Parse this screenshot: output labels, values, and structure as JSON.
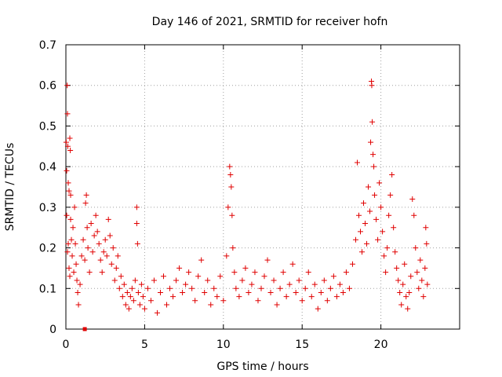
{
  "chart_data": {
    "type": "scatter",
    "title": "Day 146 of 2021, SRMTID for receiver hofn",
    "xlabel": "GPS time / hours",
    "ylabel": "SRMTID / TECUs",
    "xlim": [
      0,
      25
    ],
    "ylim": [
      0,
      0.7
    ],
    "xticks": [
      0,
      5,
      10,
      15,
      20
    ],
    "yticks": [
      0,
      0.1,
      0.2,
      0.3,
      0.4,
      0.5,
      0.6,
      0.7
    ],
    "xtick_labels": [
      "0",
      "5",
      "10",
      "15",
      "20"
    ],
    "ytick_labels": [
      "0",
      "0.1",
      "0.2",
      "0.3",
      "0.4",
      "0.5",
      "0.6",
      "0.7"
    ],
    "grid": true,
    "marker": "plus",
    "color": "#e00000",
    "series": [
      {
        "name": "SRMTID",
        "points": [
          [
            0.02,
            0.46
          ],
          [
            0.05,
            0.39
          ],
          [
            0.08,
            0.6
          ],
          [
            0.1,
            0.53
          ],
          [
            0.12,
            0.45
          ],
          [
            0.15,
            0.36
          ],
          [
            0.2,
            0.34
          ],
          [
            0.25,
            0.47
          ],
          [
            0.28,
            0.44
          ],
          [
            0.3,
            0.33
          ],
          [
            0.05,
            0.28
          ],
          [
            0.1,
            0.19
          ],
          [
            0.15,
            0.21
          ],
          [
            0.2,
            0.15
          ],
          [
            0.25,
            0.13
          ],
          [
            0.3,
            0.27
          ],
          [
            0.35,
            0.22
          ],
          [
            0.4,
            0.18
          ],
          [
            0.45,
            0.25
          ],
          [
            0.5,
            0.14
          ],
          [
            0.55,
            0.3
          ],
          [
            0.6,
            0.21
          ],
          [
            0.65,
            0.16
          ],
          [
            0.7,
            0.12
          ],
          [
            0.75,
            0.09
          ],
          [
            0.8,
            0.06
          ],
          [
            0.9,
            0.11
          ],
          [
            1.0,
            0.18
          ],
          [
            1.1,
            0.22
          ],
          [
            1.2,
            0.17
          ],
          [
            1.25,
            0.31
          ],
          [
            1.3,
            0.33
          ],
          [
            1.35,
            0.25
          ],
          [
            1.4,
            0.2
          ],
          [
            1.5,
            0.14
          ],
          [
            1.6,
            0.26
          ],
          [
            1.7,
            0.19
          ],
          [
            1.8,
            0.23
          ],
          [
            1.9,
            0.28
          ],
          [
            2.0,
            0.24
          ],
          [
            2.1,
            0.21
          ],
          [
            2.2,
            0.17
          ],
          [
            2.3,
            0.14
          ],
          [
            2.4,
            0.19
          ],
          [
            2.5,
            0.22
          ],
          [
            2.6,
            0.18
          ],
          [
            2.7,
            0.27
          ],
          [
            2.8,
            0.23
          ],
          [
            2.9,
            0.16
          ],
          [
            3.0,
            0.2
          ],
          [
            3.1,
            0.12
          ],
          [
            3.2,
            0.15
          ],
          [
            3.3,
            0.18
          ],
          [
            3.4,
            0.1
          ],
          [
            3.5,
            0.13
          ],
          [
            3.6,
            0.08
          ],
          [
            3.7,
            0.11
          ],
          [
            3.8,
            0.06
          ],
          [
            3.9,
            0.09
          ],
          [
            4.0,
            0.05
          ],
          [
            4.1,
            0.08
          ],
          [
            4.2,
            0.1
          ],
          [
            4.3,
            0.07
          ],
          [
            4.4,
            0.12
          ],
          [
            4.5,
            0.3
          ],
          [
            4.5,
            0.26
          ],
          [
            4.55,
            0.21
          ],
          [
            4.6,
            0.09
          ],
          [
            4.7,
            0.06
          ],
          [
            4.8,
            0.11
          ],
          [
            4.9,
            0.08
          ],
          [
            5.0,
            0.05
          ],
          [
            5.2,
            0.1
          ],
          [
            5.4,
            0.07
          ],
          [
            5.6,
            0.12
          ],
          [
            5.8,
            0.04
          ],
          [
            6.0,
            0.09
          ],
          [
            6.2,
            0.13
          ],
          [
            6.4,
            0.06
          ],
          [
            6.6,
            0.1
          ],
          [
            6.8,
            0.08
          ],
          [
            7.0,
            0.12
          ],
          [
            7.2,
            0.15
          ],
          [
            7.4,
            0.09
          ],
          [
            7.6,
            0.11
          ],
          [
            7.8,
            0.14
          ],
          [
            8.0,
            0.1
          ],
          [
            8.2,
            0.07
          ],
          [
            8.4,
            0.13
          ],
          [
            8.6,
            0.17
          ],
          [
            8.8,
            0.09
          ],
          [
            9.0,
            0.12
          ],
          [
            9.2,
            0.06
          ],
          [
            9.4,
            0.1
          ],
          [
            9.6,
            0.08
          ],
          [
            9.8,
            0.13
          ],
          [
            10.0,
            0.07
          ],
          [
            10.2,
            0.18
          ],
          [
            10.3,
            0.3
          ],
          [
            10.4,
            0.4
          ],
          [
            10.45,
            0.38
          ],
          [
            10.5,
            0.35
          ],
          [
            10.55,
            0.28
          ],
          [
            10.6,
            0.2
          ],
          [
            10.7,
            0.14
          ],
          [
            10.8,
            0.1
          ],
          [
            11.0,
            0.08
          ],
          [
            11.2,
            0.12
          ],
          [
            11.4,
            0.15
          ],
          [
            11.6,
            0.09
          ],
          [
            11.8,
            0.11
          ],
          [
            12.0,
            0.14
          ],
          [
            12.2,
            0.07
          ],
          [
            12.4,
            0.1
          ],
          [
            12.6,
            0.13
          ],
          [
            12.8,
            0.17
          ],
          [
            13.0,
            0.09
          ],
          [
            13.2,
            0.12
          ],
          [
            13.4,
            0.06
          ],
          [
            13.6,
            0.1
          ],
          [
            13.8,
            0.14
          ],
          [
            14.0,
            0.08
          ],
          [
            14.2,
            0.11
          ],
          [
            14.4,
            0.16
          ],
          [
            14.6,
            0.09
          ],
          [
            14.8,
            0.12
          ],
          [
            15.0,
            0.07
          ],
          [
            15.2,
            0.1
          ],
          [
            15.4,
            0.14
          ],
          [
            15.6,
            0.08
          ],
          [
            15.8,
            0.11
          ],
          [
            16.0,
            0.05
          ],
          [
            16.2,
            0.09
          ],
          [
            16.4,
            0.12
          ],
          [
            16.6,
            0.07
          ],
          [
            16.8,
            0.1
          ],
          [
            17.0,
            0.13
          ],
          [
            17.2,
            0.08
          ],
          [
            17.4,
            0.11
          ],
          [
            17.6,
            0.09
          ],
          [
            17.8,
            0.14
          ],
          [
            18.0,
            0.1
          ],
          [
            18.2,
            0.16
          ],
          [
            18.4,
            0.22
          ],
          [
            18.5,
            0.41
          ],
          [
            18.6,
            0.28
          ],
          [
            18.7,
            0.24
          ],
          [
            18.8,
            0.19
          ],
          [
            18.9,
            0.31
          ],
          [
            19.0,
            0.26
          ],
          [
            19.1,
            0.21
          ],
          [
            19.2,
            0.35
          ],
          [
            19.3,
            0.29
          ],
          [
            19.35,
            0.46
          ],
          [
            19.4,
            0.61
          ],
          [
            19.42,
            0.6
          ],
          [
            19.45,
            0.51
          ],
          [
            19.5,
            0.43
          ],
          [
            19.55,
            0.4
          ],
          [
            19.6,
            0.33
          ],
          [
            19.7,
            0.27
          ],
          [
            19.8,
            0.22
          ],
          [
            19.9,
            0.36
          ],
          [
            20.0,
            0.3
          ],
          [
            20.1,
            0.24
          ],
          [
            20.2,
            0.18
          ],
          [
            20.3,
            0.14
          ],
          [
            20.4,
            0.2
          ],
          [
            20.5,
            0.28
          ],
          [
            20.6,
            0.33
          ],
          [
            20.7,
            0.38
          ],
          [
            20.8,
            0.25
          ],
          [
            20.9,
            0.19
          ],
          [
            21.0,
            0.15
          ],
          [
            21.1,
            0.12
          ],
          [
            21.2,
            0.09
          ],
          [
            21.3,
            0.06
          ],
          [
            21.4,
            0.11
          ],
          [
            21.5,
            0.16
          ],
          [
            21.6,
            0.08
          ],
          [
            21.7,
            0.05
          ],
          [
            21.8,
            0.09
          ],
          [
            21.9,
            0.13
          ],
          [
            22.0,
            0.32
          ],
          [
            22.1,
            0.28
          ],
          [
            22.2,
            0.2
          ],
          [
            22.3,
            0.14
          ],
          [
            22.4,
            0.1
          ],
          [
            22.5,
            0.17
          ],
          [
            22.6,
            0.12
          ],
          [
            22.7,
            0.08
          ],
          [
            22.8,
            0.15
          ],
          [
            22.85,
            0.25
          ],
          [
            22.9,
            0.21
          ],
          [
            22.95,
            0.11
          ]
        ]
      }
    ],
    "baseline_marker": {
      "x": 1.2,
      "y": 0.0
    }
  }
}
